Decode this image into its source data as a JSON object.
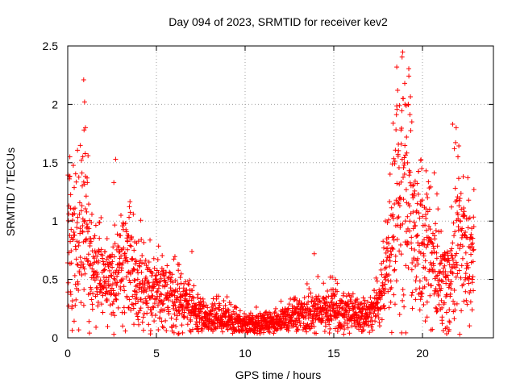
{
  "chart_data": {
    "type": "scatter",
    "title": "Day 094 of 2023, SRMTID for receiver kev2",
    "xlabel": "GPS time / hours",
    "ylabel": "SRMTID / TECUs",
    "xlim": [
      0,
      24
    ],
    "ylim": [
      0,
      2.5
    ],
    "grid": true,
    "marker": "+",
    "color": "#ff0000",
    "x_ticks": [
      0,
      5,
      10,
      15,
      20
    ],
    "x_tick_labels": [
      "0",
      "5",
      "10",
      "15",
      "20"
    ],
    "y_ticks": [
      0,
      0.5,
      1,
      1.5,
      2,
      2.5
    ],
    "y_tick_labels": [
      "0",
      "0.5",
      "1",
      "1.5",
      "2",
      "2.5"
    ],
    "series": [
      {
        "name": "kev2",
        "profile_x": [
          0.0,
          0.2,
          0.5,
          1.0,
          1.5,
          2.0,
          2.5,
          3.0,
          3.5,
          4.0,
          4.5,
          5.0,
          5.5,
          6.0,
          6.5,
          7.0,
          7.5,
          8.0,
          9.0,
          10.0,
          11.0,
          12.0,
          13.0,
          14.0,
          15.0,
          15.5,
          16.0,
          16.5,
          17.0,
          17.5,
          18.0,
          18.3,
          18.6,
          19.0,
          19.5,
          20.0,
          20.5,
          21.0,
          21.5,
          22.0,
          22.5,
          23.0
        ],
        "profile_y": [
          1.1,
          0.9,
          0.75,
          0.95,
          0.6,
          0.5,
          0.45,
          0.55,
          0.6,
          0.5,
          0.42,
          0.4,
          0.38,
          0.35,
          0.3,
          0.25,
          0.2,
          0.18,
          0.17,
          0.12,
          0.13,
          0.15,
          0.2,
          0.22,
          0.25,
          0.23,
          0.2,
          0.18,
          0.2,
          0.3,
          0.55,
          0.8,
          1.2,
          1.4,
          1.0,
          0.8,
          0.75,
          0.6,
          0.45,
          0.9,
          0.8,
          0.85
        ],
        "spread_factor": 0.45,
        "n_points": 2300,
        "x_range": [
          0,
          22.9
        ],
        "outliers": [
          {
            "x": 0.9,
            "y": 2.21
          },
          {
            "x": 0.95,
            "y": 2.02
          },
          {
            "x": 0.92,
            "y": 1.78
          },
          {
            "x": 1.0,
            "y": 1.8
          },
          {
            "x": 0.12,
            "y": 1.55
          },
          {
            "x": 0.85,
            "y": 1.55
          },
          {
            "x": 2.7,
            "y": 1.53
          },
          {
            "x": 1.2,
            "y": 0.14
          },
          {
            "x": 2.6,
            "y": 1.33
          },
          {
            "x": 3.0,
            "y": 1.05
          },
          {
            "x": 13.9,
            "y": 0.72
          },
          {
            "x": 14.8,
            "y": 0.52
          },
          {
            "x": 15.1,
            "y": 0.5
          },
          {
            "x": 7.0,
            "y": 0.74
          },
          {
            "x": 18.55,
            "y": 2.32
          },
          {
            "x": 18.6,
            "y": 2.12
          },
          {
            "x": 18.9,
            "y": 2.05
          },
          {
            "x": 19.0,
            "y": 2.18
          },
          {
            "x": 18.7,
            "y": 1.99
          },
          {
            "x": 19.2,
            "y": 2.0
          },
          {
            "x": 19.4,
            "y": 1.85
          },
          {
            "x": 19.1,
            "y": 1.72
          },
          {
            "x": 18.8,
            "y": 1.66
          },
          {
            "x": 19.9,
            "y": 1.52
          },
          {
            "x": 20.2,
            "y": 1.43
          },
          {
            "x": 21.7,
            "y": 1.83
          },
          {
            "x": 21.9,
            "y": 1.8
          },
          {
            "x": 21.8,
            "y": 1.62
          },
          {
            "x": 22.0,
            "y": 1.55
          },
          {
            "x": 22.3,
            "y": 1.38
          },
          {
            "x": 22.9,
            "y": 1.27
          },
          {
            "x": 22.8,
            "y": 0.24
          },
          {
            "x": 20.8,
            "y": 0.25
          },
          {
            "x": 21.3,
            "y": 0.08
          },
          {
            "x": 21.5,
            "y": 0.07
          },
          {
            "x": 21.1,
            "y": 0.15
          }
        ]
      }
    ]
  }
}
